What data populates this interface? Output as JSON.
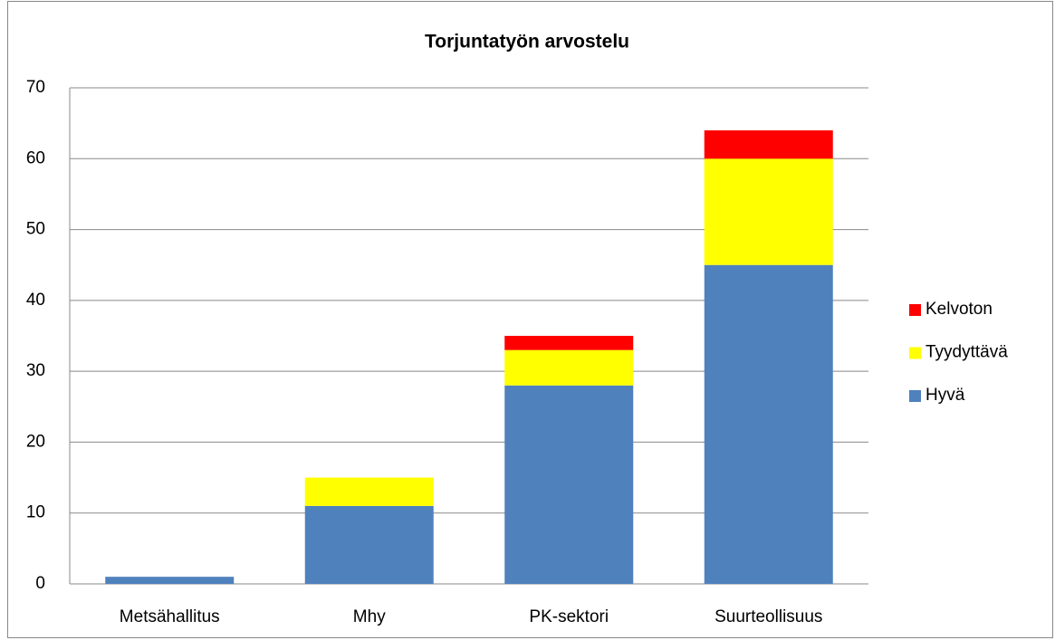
{
  "chart_data": {
    "type": "stacked_bar",
    "title": "Torjuntatyön arvostelu",
    "categories": [
      "Metsähallitus",
      "Mhy",
      "PK-sektori",
      "Suurteollisuus"
    ],
    "series": [
      {
        "name": "Hyvä",
        "color": "#4f81bd",
        "values": [
          1,
          11,
          28,
          45
        ]
      },
      {
        "name": "Tyydyttävä",
        "color": "#ffff00",
        "values": [
          0,
          4,
          5,
          15
        ]
      },
      {
        "name": "Kelvoton",
        "color": "#ff0000",
        "values": [
          0,
          0,
          2,
          4
        ]
      }
    ],
    "ylim": [
      0,
      70
    ],
    "yticks": [
      0,
      10,
      20,
      30,
      40,
      50,
      60,
      70
    ],
    "grid": true,
    "legend": "right"
  }
}
